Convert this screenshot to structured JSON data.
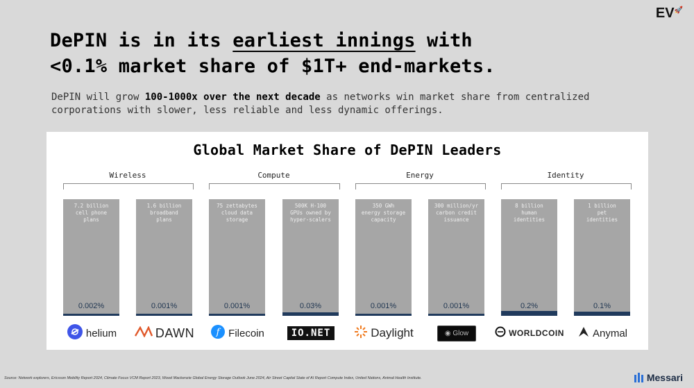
{
  "header": {
    "badge": "EV",
    "title_line1_pre": "DePIN is in its ",
    "title_line1_ul": "earliest innings",
    "title_line1_post": " with",
    "title_line2": "<0.1% market share of $1T+ end-markets.",
    "sub_pre": "DePIN will grow ",
    "sub_bold": "100-1000x over the next decade",
    "sub_post": " as networks win market share from centralized corporations with slower, less reliable and less dynamic offerings."
  },
  "chart": {
    "title": "Global Market Share of DePIN Leaders",
    "groups": [
      "Wireless",
      "Compute",
      "Energy",
      "Identity"
    ],
    "columns": [
      {
        "line1": "7.2 billion",
        "line2": "cell phone",
        "line3": "plans",
        "pct": "0.002%",
        "share": 0.002,
        "logo": "helium",
        "logo_icon": "helium-icon"
      },
      {
        "line1": "1.6 billion",
        "line2": "broadband",
        "line3": "plans",
        "pct": "0.001%",
        "share": 0.001,
        "logo": "DAWN",
        "logo_icon": "dawn-icon"
      },
      {
        "line1": "75 zettabytes",
        "line2": "cloud data",
        "line3": "storage",
        "pct": "0.001%",
        "share": 0.001,
        "logo": "Filecoin",
        "logo_icon": "filecoin-icon"
      },
      {
        "line1": "500K H-100",
        "line2": "GPUs owned by",
        "line3": "hyper-scalers",
        "pct": "0.03%",
        "share": 0.03,
        "logo": "IO.NET",
        "logo_icon": "io-net-icon"
      },
      {
        "line1": "350 GWh",
        "line2": "energy storage",
        "line3": "capacity",
        "pct": "0.001%",
        "share": 0.001,
        "logo": "Daylight",
        "logo_icon": "daylight-icon"
      },
      {
        "line1": "300 million/yr",
        "line2": "carbon credit",
        "line3": "issuance",
        "pct": "0.001%",
        "share": 0.001,
        "logo": "Glow",
        "logo_icon": "glow-icon"
      },
      {
        "line1": "8 billion",
        "line2": "human",
        "line3": "identities",
        "pct": "0.2%",
        "share": 0.2,
        "logo": "WORLDCOIN",
        "logo_icon": "worldcoin-icon"
      },
      {
        "line1": "1 billion",
        "line2": "pet",
        "line3": "identities",
        "pct": "0.1%",
        "share": 0.1,
        "logo": "Anymal",
        "logo_icon": "anymal-icon"
      }
    ]
  },
  "chart_data": {
    "type": "bar",
    "title": "Global Market Share of DePIN Leaders",
    "categories": [
      "helium",
      "DAWN",
      "Filecoin",
      "IO.NET",
      "Daylight",
      "Glow",
      "WORLDCOIN",
      "Anymal"
    ],
    "values": [
      0.002,
      0.001,
      0.001,
      0.03,
      0.001,
      0.001,
      0.2,
      0.1
    ],
    "ylabel": "",
    "xlabel": "",
    "ylim": [
      0,
      100
    ]
  },
  "footer": {
    "source": "Source: Network explorers, Ericsson Mobility Report 2024, Climate Focus VCM Report 2023, Wood Mackenzie Global Energy Storage Outlook June 2024, Air Street Capital State of AI Report Compute Index, United Nations, Animal Health Institute.",
    "brand": "Messari",
    "accent": "#203a5c"
  }
}
